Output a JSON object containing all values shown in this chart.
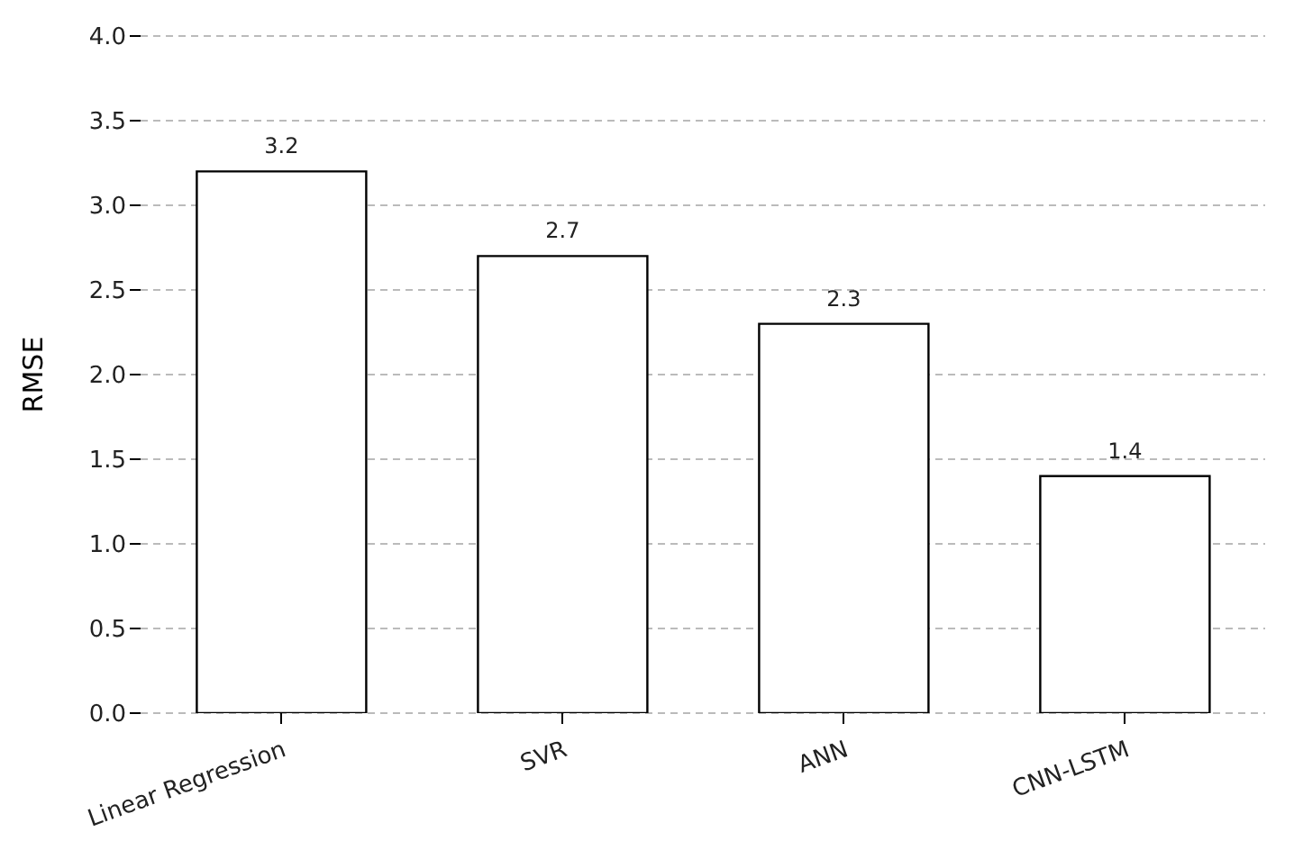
{
  "chart_data": {
    "type": "bar",
    "ylabel": "RMSE",
    "categories": [
      "Linear Regression",
      "SVR",
      "ANN",
      "CNN-LSTM"
    ],
    "values": [
      3.2,
      2.7,
      2.3,
      1.4
    ],
    "color": "#ffffff",
    "ylim": [
      0,
      4
    ],
    "yticks": [
      {
        "value": 0,
        "label": "0.0"
      },
      0.5,
      {
        "value": 1,
        "label": "1.0"
      },
      1.5,
      {
        "value": 2,
        "label": "2.0"
      },
      2.5,
      {
        "value": 3,
        "label": "3.0"
      },
      3.5,
      {
        "value": 4,
        "label": "4.0"
      }
    ],
    "grid": "y",
    "data_labels": true
  }
}
